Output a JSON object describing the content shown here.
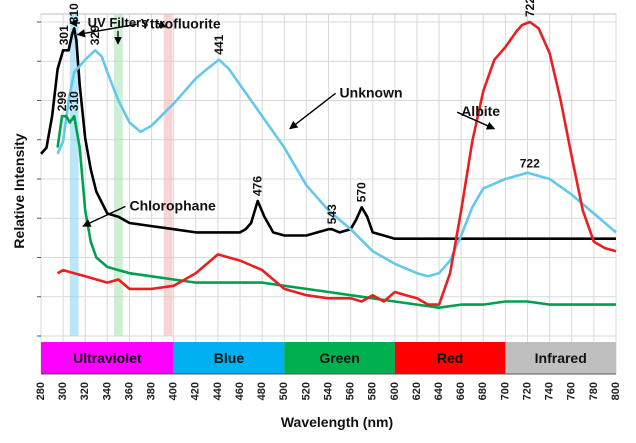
{
  "chart_data": {
    "type": "line",
    "title": "",
    "xlabel": "Wavelength (nm)",
    "ylabel": "Relative Intensity",
    "xlim": [
      280,
      800
    ],
    "ylim": [
      0,
      100
    ],
    "grid": true,
    "x_ticks": [
      280,
      300,
      320,
      340,
      360,
      380,
      400,
      420,
      440,
      460,
      480,
      500,
      520,
      540,
      560,
      580,
      600,
      620,
      640,
      660,
      680,
      700,
      720,
      740,
      760,
      780,
      800
    ],
    "filters": {
      "label": "UV Filters",
      "bands": [
        {
          "center": 310,
          "width": 8,
          "color": "#7fd3f0"
        },
        {
          "center": 350,
          "width": 8,
          "color": "#a8e0b4"
        },
        {
          "center": 395,
          "width": 8,
          "color": "#f3b3b3"
        }
      ]
    },
    "spectrum_bands": [
      {
        "label": "Ultraviolet",
        "start": 280,
        "end": 400,
        "color": "#ff00ff"
      },
      {
        "label": "Blue",
        "start": 400,
        "end": 500,
        "color": "#00b0f0"
      },
      {
        "label": "Green",
        "start": 500,
        "end": 600,
        "color": "#00b050"
      },
      {
        "label": "Red",
        "start": 600,
        "end": 700,
        "color": "#ff0000"
      },
      {
        "label": "Infrared",
        "start": 700,
        "end": 800,
        "color": "#bfbfbf"
      }
    ],
    "series": [
      {
        "name": "Yttrofluorite",
        "color": "#000000",
        "x": [
          280,
          285,
          290,
          295,
          300,
          305,
          308,
          310,
          312,
          315,
          320,
          325,
          330,
          340,
          350,
          360,
          380,
          400,
          420,
          440,
          460,
          465,
          470,
          476,
          482,
          490,
          500,
          520,
          530,
          540,
          543,
          550,
          560,
          565,
          570,
          575,
          580,
          590,
          600,
          650,
          700,
          750,
          800
        ],
        "y": [
          58,
          60,
          70,
          85,
          91,
          91,
          96,
          98,
          94,
          80,
          63,
          53,
          46,
          39,
          38,
          36,
          35,
          34,
          33,
          33,
          33,
          34,
          36,
          43,
          38,
          33,
          32,
          32,
          33,
          34,
          34,
          33,
          34,
          37,
          41,
          38,
          33,
          32,
          31,
          31,
          31,
          31,
          31
        ]
      },
      {
        "name": "Unknown",
        "color": "#64c8ee",
        "x": [
          295,
          300,
          305,
          310,
          315,
          320,
          329,
          335,
          340,
          350,
          360,
          370,
          380,
          400,
          420,
          430,
          441,
          450,
          460,
          470,
          480,
          500,
          520,
          540,
          560,
          580,
          600,
          620,
          630,
          640,
          650,
          660,
          670,
          680,
          700,
          720,
          740,
          760,
          780,
          800
        ],
        "y": [
          58,
          62,
          75,
          84,
          86,
          88,
          91,
          89,
          84,
          75,
          68,
          65,
          67,
          74,
          82,
          85,
          88,
          85,
          80,
          75,
          70,
          60,
          48,
          40,
          34,
          27,
          23,
          20,
          19,
          20,
          24,
          32,
          41,
          47,
          50,
          52,
          50,
          45,
          39,
          33
        ]
      },
      {
        "name": "Chlorophane",
        "color": "#00a050",
        "x": [
          295,
          299,
          303,
          306,
          310,
          315,
          320,
          325,
          330,
          340,
          350,
          360,
          380,
          400,
          420,
          440,
          460,
          480,
          500,
          520,
          540,
          560,
          580,
          600,
          620,
          640,
          660,
          680,
          700,
          720,
          740,
          760,
          780,
          800
        ],
        "y": [
          60,
          70,
          70,
          68,
          70,
          60,
          40,
          30,
          25,
          22,
          21,
          20,
          19,
          18,
          17,
          17,
          17,
          17,
          16,
          15,
          14,
          13,
          12,
          11,
          10,
          9,
          10,
          10,
          11,
          11,
          10,
          10,
          10,
          10
        ]
      },
      {
        "name": "Albite",
        "color": "#e82020",
        "x": [
          295,
          300,
          310,
          320,
          330,
          340,
          350,
          360,
          380,
          400,
          420,
          440,
          460,
          480,
          490,
          500,
          520,
          540,
          560,
          570,
          580,
          590,
          600,
          610,
          620,
          630,
          640,
          650,
          660,
          670,
          680,
          690,
          700,
          710,
          715,
          722,
          730,
          740,
          750,
          760,
          770,
          780,
          790,
          800
        ],
        "y": [
          20,
          21,
          20,
          19,
          18,
          17,
          18,
          15,
          15,
          16,
          20,
          26,
          24,
          21,
          18,
          15,
          13,
          12,
          12,
          11,
          13,
          11,
          14,
          13,
          12,
          10,
          10,
          20,
          40,
          62,
          78,
          88,
          92,
          97,
          99,
          100,
          98,
          90,
          75,
          57,
          40,
          30,
          28,
          27
        ]
      }
    ],
    "peak_labels": [
      {
        "x": 301,
        "y": 91,
        "text": "301",
        "series": "Yttrofluorite",
        "rotate": true
      },
      {
        "x": 310,
        "y": 98,
        "text": "310",
        "series": "Yttrofluorite",
        "rotate": true
      },
      {
        "x": 329,
        "y": 91,
        "text": "329",
        "series": "Unknown",
        "rotate": true
      },
      {
        "x": 441,
        "y": 88,
        "text": "441",
        "series": "Unknown",
        "rotate": true
      },
      {
        "x": 299,
        "y": 70,
        "text": "299",
        "series": "Chlorophane",
        "rotate": true
      },
      {
        "x": 310,
        "y": 70,
        "text": "310",
        "series": "Chlorophane",
        "rotate": true
      },
      {
        "x": 476,
        "y": 43,
        "text": "476",
        "series": "Yttrofluorite",
        "rotate": true
      },
      {
        "x": 543,
        "y": 34,
        "text": "543",
        "series": "Yttrofluorite",
        "rotate": true
      },
      {
        "x": 570,
        "y": 41,
        "text": "570",
        "series": "Yttrofluorite",
        "rotate": true
      },
      {
        "x": 722,
        "y": 100,
        "text": "722",
        "series": "Albite",
        "rotate": true
      },
      {
        "x": 722,
        "y": 52,
        "text": "722",
        "series": "Unknown",
        "rotate": false
      }
    ],
    "callouts": [
      {
        "text": "Yttrofluorite",
        "tx": 370,
        "ty": 98,
        "ax": 313,
        "ay": 96
      },
      {
        "text": "Unknown",
        "tx": 550,
        "ty": 76,
        "ax": 505,
        "ay": 66
      },
      {
        "text": "Albite",
        "tx": 660,
        "ty": 70,
        "ax": 690,
        "ay": 66
      },
      {
        "text": "Chlorophane",
        "tx": 360,
        "ty": 40,
        "ax": 318,
        "ay": 35
      }
    ]
  }
}
